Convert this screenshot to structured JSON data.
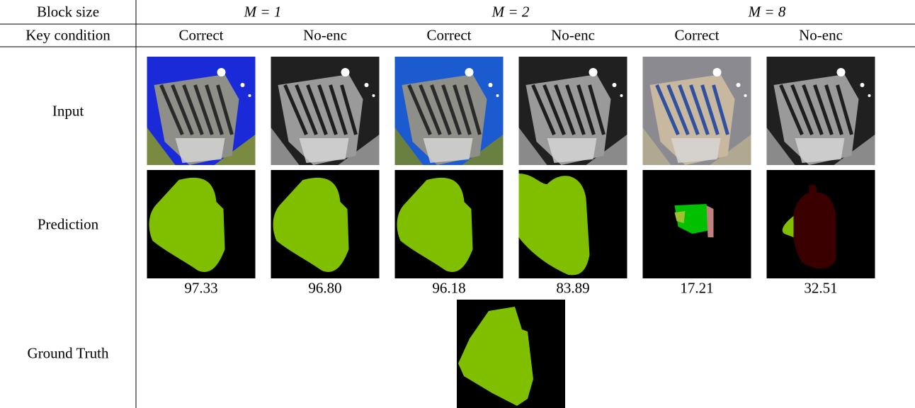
{
  "header": {
    "row_label": "Block size",
    "block_sizes": [
      "M = 1",
      "M = 2",
      "M = 8"
    ]
  },
  "key_row": {
    "label": "Key condition",
    "conditions": [
      "Correct",
      "No-enc",
      "Correct",
      "No-enc",
      "Correct",
      "No-enc"
    ]
  },
  "rows": {
    "input": "Input",
    "prediction": "Prediction",
    "ground_truth": "Ground Truth"
  },
  "scores": [
    "97.33",
    "96.80",
    "96.18",
    "83.89",
    "17.21",
    "32.51"
  ]
}
